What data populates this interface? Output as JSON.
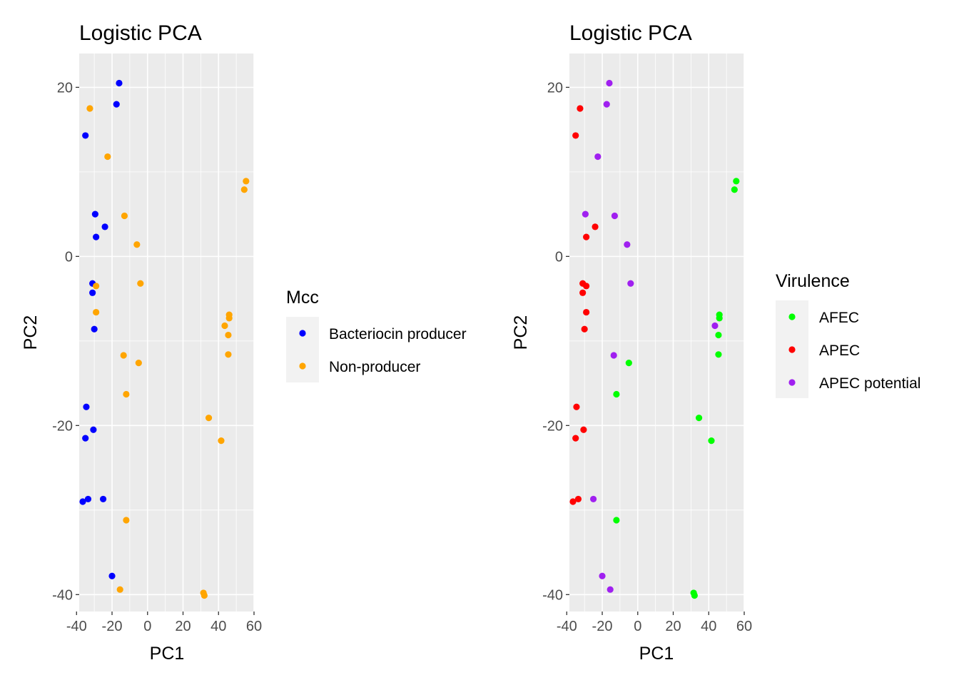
{
  "chart_data": [
    {
      "type": "scatter",
      "title": "Logistic PCA",
      "xlabel": "PC1",
      "ylabel": "PC2",
      "xlim": [
        -38.5,
        60
      ],
      "ylim": [
        -42,
        24
      ],
      "xticks": [
        -40,
        -20,
        0,
        20,
        40,
        60
      ],
      "yticks": [
        -40,
        -20,
        0,
        20
      ],
      "grid": true,
      "legend": {
        "title": "Mcc",
        "position": "right",
        "entries": [
          {
            "label": "Bacteriocin producer",
            "color": "#0000FF"
          },
          {
            "label": "Non-producer",
            "color": "#FFA500"
          }
        ]
      },
      "series": [
        {
          "name": "Bacteriocin producer",
          "color": "#0000FF",
          "points": [
            [
              -16,
              20.5
            ],
            [
              -17.5,
              18
            ],
            [
              -35,
              14.3
            ],
            [
              -29.5,
              5
            ],
            [
              -24,
              3.5
            ],
            [
              -29,
              2.3
            ],
            [
              -31,
              -3.2
            ],
            [
              -31,
              -4.3
            ],
            [
              -30,
              -8.6
            ],
            [
              -34.5,
              -17.8
            ],
            [
              -30.5,
              -20.5
            ],
            [
              -35,
              -21.5
            ],
            [
              -33.5,
              -28.7
            ],
            [
              -36.5,
              -29
            ],
            [
              -25,
              -28.7
            ],
            [
              -20,
              -37.8
            ]
          ]
        },
        {
          "name": "Non-producer",
          "color": "#FFA500",
          "points": [
            [
              -32.5,
              17.5
            ],
            [
              -22.5,
              11.8
            ],
            [
              55.5,
              8.9
            ],
            [
              54.5,
              7.9
            ],
            [
              -13,
              4.8
            ],
            [
              -6,
              1.4
            ],
            [
              -29,
              -3.5
            ],
            [
              -4,
              -3.2
            ],
            [
              -29,
              -6.6
            ],
            [
              46,
              -6.9
            ],
            [
              46,
              -7.3
            ],
            [
              43.5,
              -8.2
            ],
            [
              45.5,
              -9.3
            ],
            [
              -13.5,
              -11.7
            ],
            [
              -5,
              -12.6
            ],
            [
              45.5,
              -11.6
            ],
            [
              -12,
              -16.3
            ],
            [
              34.5,
              -19.1
            ],
            [
              41.5,
              -21.8
            ],
            [
              -12,
              -31.2
            ],
            [
              -15.5,
              -39.4
            ],
            [
              31.5,
              -39.8
            ],
            [
              32,
              -40.1
            ]
          ]
        }
      ]
    },
    {
      "type": "scatter",
      "title": "Logistic PCA",
      "xlabel": "PC1",
      "ylabel": "PC2",
      "xlim": [
        -38.5,
        60
      ],
      "ylim": [
        -42,
        24
      ],
      "xticks": [
        -40,
        -20,
        0,
        20,
        40,
        60
      ],
      "yticks": [
        -40,
        -20,
        0,
        20
      ],
      "grid": true,
      "legend": {
        "title": "Virulence",
        "position": "right",
        "entries": [
          {
            "label": "AFEC",
            "color": "#00FF00"
          },
          {
            "label": "APEC",
            "color": "#FF0000"
          },
          {
            "label": "APEC potential",
            "color": "#A020F0"
          }
        ]
      },
      "series": [
        {
          "name": "AFEC",
          "color": "#00FF00",
          "points": [
            [
              55.5,
              8.9
            ],
            [
              54.5,
              7.9
            ],
            [
              46,
              -6.9
            ],
            [
              46,
              -7.3
            ],
            [
              45.5,
              -9.3
            ],
            [
              45.5,
              -11.6
            ],
            [
              -5,
              -12.6
            ],
            [
              -12,
              -16.3
            ],
            [
              34.5,
              -19.1
            ],
            [
              41.5,
              -21.8
            ],
            [
              -12,
              -31.2
            ],
            [
              31.5,
              -39.8
            ],
            [
              32,
              -40.1
            ]
          ]
        },
        {
          "name": "APEC",
          "color": "#FF0000",
          "points": [
            [
              -32.5,
              17.5
            ],
            [
              -35,
              14.3
            ],
            [
              -24,
              3.5
            ],
            [
              -29,
              2.3
            ],
            [
              -31,
              -3.2
            ],
            [
              -29,
              -3.5
            ],
            [
              -31,
              -4.3
            ],
            [
              -29,
              -6.6
            ],
            [
              -30,
              -8.6
            ],
            [
              -34.5,
              -17.8
            ],
            [
              -30.5,
              -20.5
            ],
            [
              -35,
              -21.5
            ],
            [
              -33.5,
              -28.7
            ],
            [
              -36.5,
              -29
            ]
          ]
        },
        {
          "name": "APEC potential",
          "color": "#A020F0",
          "points": [
            [
              -16,
              20.5
            ],
            [
              -17.5,
              18
            ],
            [
              -22.5,
              11.8
            ],
            [
              -29.5,
              5
            ],
            [
              -13,
              4.8
            ],
            [
              -6,
              1.4
            ],
            [
              -4,
              -3.2
            ],
            [
              43.5,
              -8.2
            ],
            [
              -13.5,
              -11.7
            ],
            [
              -25,
              -28.7
            ],
            [
              -20,
              -37.8
            ],
            [
              -15.5,
              -39.4
            ]
          ]
        }
      ]
    }
  ]
}
